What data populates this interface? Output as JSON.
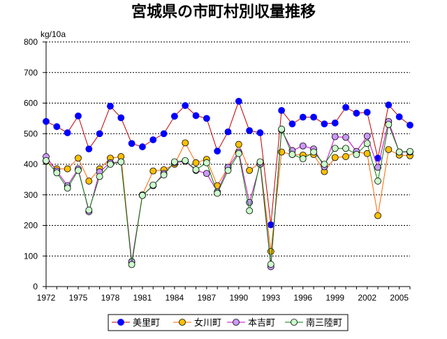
{
  "chart_data": {
    "type": "line",
    "title": "宮城県の市町村別収量推移",
    "ylabel": "kg/10a",
    "xlabel": "",
    "ylim": [
      0,
      800
    ],
    "y_ticks": [
      "0",
      "100",
      "200",
      "300",
      "400",
      "500",
      "600",
      "700",
      "800"
    ],
    "x_ticks": [
      1972,
      1975,
      1978,
      1981,
      1984,
      1987,
      1990,
      1993,
      1996,
      1999,
      2002,
      2005
    ],
    "grid": "horizontal dotted",
    "legend_position": "bottom",
    "x": [
      1972,
      1973,
      1974,
      1975,
      1976,
      1977,
      1978,
      1979,
      1980,
      1981,
      1982,
      1983,
      1984,
      1985,
      1986,
      1987,
      1988,
      1989,
      1990,
      1991,
      1992,
      1993,
      1994,
      1995,
      1996,
      1997,
      1998,
      1999,
      2000,
      2001,
      2002,
      2003,
      2004,
      2005,
      2006
    ],
    "series": [
      {
        "name": "美里町",
        "color": "#c00000",
        "marker_color": "#0000ff",
        "values": [
          540,
          523,
          503,
          558,
          450,
          500,
          590,
          552,
          468,
          457,
          480,
          500,
          557,
          592,
          559,
          550,
          443,
          506,
          606,
          510,
          503,
          202,
          576,
          532,
          554,
          554,
          532,
          535,
          586,
          567,
          570,
          420,
          594,
          555,
          528
        ]
      },
      {
        "name": "女川町",
        "color": "#ff6600",
        "marker_color": "#ffc000",
        "values": [
          410,
          385,
          385,
          420,
          345,
          385,
          420,
          425,
          80,
          300,
          378,
          382,
          400,
          470,
          405,
          416,
          330,
          390,
          465,
          380,
          405,
          115,
          440,
          432,
          430,
          432,
          376,
          422,
          425,
          440,
          435,
          232,
          448,
          430,
          428
        ]
      },
      {
        "name": "本吉町",
        "color": "#cc00cc",
        "marker_color": "#cc99ff",
        "values": [
          425,
          378,
          330,
          385,
          245,
          375,
          405,
          408,
          82,
          298,
          330,
          370,
          405,
          410,
          380,
          370,
          310,
          390,
          440,
          275,
          400,
          65,
          512,
          445,
          460,
          450,
          392,
          490,
          488,
          442,
          492,
          390,
          540,
          440,
          440
        ]
      },
      {
        "name": "南三陸町",
        "color": "#008000",
        "marker_color": "#ccffcc",
        "values": [
          412,
          372,
          322,
          380,
          250,
          360,
          400,
          408,
          72,
          298,
          332,
          365,
          408,
          412,
          382,
          405,
          305,
          380,
          435,
          248,
          408,
          73,
          515,
          432,
          418,
          440,
          400,
          452,
          452,
          432,
          468,
          345,
          530,
          440,
          442
        ]
      }
    ]
  }
}
